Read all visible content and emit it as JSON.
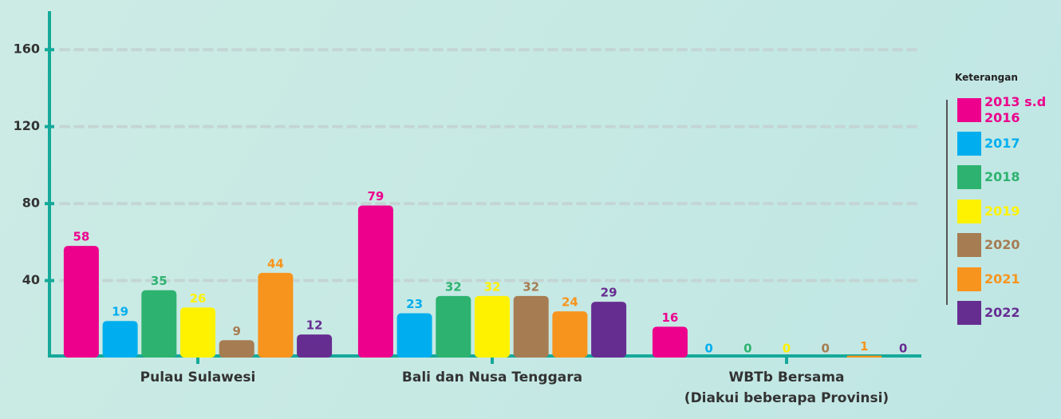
{
  "chart_data": {
    "type": "bar",
    "categories": [
      "Pulau Sulawesi",
      "Bali dan Nusa Tenggara",
      "WBTb Bersama\n(Diakui beberapa Provinsi)"
    ],
    "series": [
      {
        "name": "2013 s.d 2016",
        "color": "#ec008c",
        "values": [
          58,
          79,
          16
        ]
      },
      {
        "name": "2017",
        "color": "#00aeef",
        "values": [
          19,
          23,
          0
        ]
      },
      {
        "name": "2018",
        "color": "#2db36f",
        "values": [
          35,
          32,
          0
        ]
      },
      {
        "name": "2019",
        "color": "#fff200",
        "values": [
          26,
          32,
          0
        ]
      },
      {
        "name": "2020",
        "color": "#a67c52",
        "values": [
          9,
          32,
          0
        ]
      },
      {
        "name": "2021",
        "color": "#f7941d",
        "values": [
          44,
          24,
          1
        ]
      },
      {
        "name": "2022",
        "color": "#662d91",
        "values": [
          12,
          29,
          0
        ]
      }
    ],
    "ylim": [
      0,
      180
    ],
    "yticks": [
      40,
      80,
      120,
      160
    ],
    "grid": true,
    "legend_title": "Keterangan",
    "legend_position": "right"
  }
}
